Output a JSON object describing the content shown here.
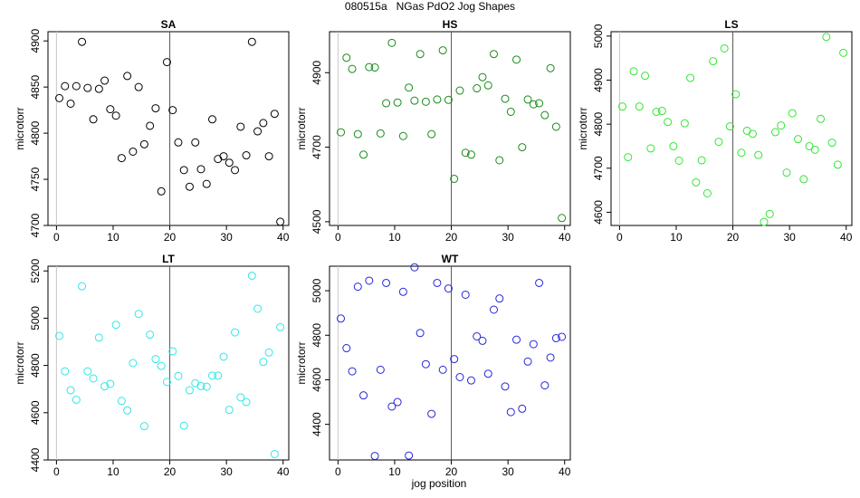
{
  "page": {
    "title": "080515a   NGas PdO2 Jog Shapes",
    "xlabel": "jog position"
  },
  "chart_data": [
    {
      "type": "scatter",
      "title": "SA",
      "ylabel": "microtorr",
      "color": "#000000",
      "xlim": [
        -1.5,
        41
      ],
      "ylim": [
        4700,
        4910
      ],
      "xticks": [
        0,
        10,
        20,
        30,
        40
      ],
      "yticks": [
        4700,
        4750,
        4800,
        4850,
        4900
      ],
      "vline": 20,
      "x": [
        0.5,
        1.5,
        2.5,
        3.5,
        4.5,
        5.5,
        6.5,
        7.5,
        8.5,
        9.5,
        10.5,
        11.5,
        12.5,
        13.5,
        14.5,
        15.5,
        16.5,
        17.5,
        18.5,
        19.5,
        20.5,
        21.5,
        22.5,
        23.5,
        24.5,
        25.5,
        26.5,
        27.5,
        28.5,
        29.5,
        30.5,
        31.5,
        32.5,
        33.5,
        34.5,
        35.5,
        36.5,
        37.5,
        38.5,
        39.5
      ],
      "y": [
        4838,
        4851,
        4832,
        4851,
        4899,
        4849,
        4815,
        4848,
        4857,
        4826,
        4819,
        4773,
        4862,
        4780,
        4850,
        4788,
        4808,
        4827,
        4737,
        4877,
        4825,
        4790,
        4760,
        4742,
        4790,
        4761,
        4745,
        4815,
        4772,
        4775,
        4768,
        4760,
        4807,
        4776,
        4899,
        4802,
        4811,
        4775,
        4821,
        4704
      ]
    },
    {
      "type": "scatter",
      "title": "HS",
      "ylabel": "microtorr",
      "color": "#1a8a1a",
      "xlim": [
        -1.5,
        41
      ],
      "ylim": [
        4490,
        5010
      ],
      "xticks": [
        0,
        10,
        20,
        30,
        40
      ],
      "yticks": [
        4500,
        4700,
        4900
      ],
      "vline": 20,
      "x": [
        0.5,
        1.5,
        2.5,
        3.5,
        4.5,
        5.5,
        6.5,
        7.5,
        8.5,
        9.5,
        10.5,
        11.5,
        12.5,
        13.5,
        14.5,
        15.5,
        16.5,
        17.5,
        18.5,
        19.5,
        20.5,
        21.5,
        22.5,
        23.5,
        24.5,
        25.5,
        26.5,
        27.5,
        28.5,
        29.5,
        30.5,
        31.5,
        32.5,
        33.5,
        34.5,
        35.5,
        36.5,
        37.5,
        38.5,
        39.5
      ],
      "y": [
        4740,
        4940,
        4910,
        4735,
        4680,
        4915,
        4914,
        4737,
        4818,
        4980,
        4820,
        4730,
        4860,
        4825,
        4950,
        4822,
        4735,
        4828,
        4960,
        4827,
        4615,
        4852,
        4685,
        4680,
        4858,
        4888,
        4866,
        4950,
        4665,
        4830,
        4795,
        4935,
        4700,
        4828,
        4815,
        4818,
        4786,
        4912,
        4755,
        4510
      ]
    },
    {
      "type": "scatter",
      "title": "LS",
      "ylabel": "microtorr",
      "color": "#33e633",
      "xlim": [
        -1.5,
        41
      ],
      "ylim": [
        4570,
        5010
      ],
      "xticks": [
        0,
        10,
        20,
        30,
        40
      ],
      "yticks": [
        4600,
        4700,
        4800,
        4900,
        5000
      ],
      "vline": 20,
      "x": [
        0.5,
        1.5,
        2.5,
        3.5,
        4.5,
        5.5,
        6.5,
        7.5,
        8.5,
        9.5,
        10.5,
        11.5,
        12.5,
        13.5,
        14.5,
        15.5,
        16.5,
        17.5,
        18.5,
        19.5,
        20.5,
        21.5,
        22.5,
        23.5,
        24.5,
        25.5,
        26.5,
        27.5,
        28.5,
        29.5,
        30.5,
        31.5,
        32.5,
        33.5,
        34.5,
        35.5,
        36.5,
        37.5,
        38.5,
        39.5
      ],
      "y": [
        4840,
        4725,
        4920,
        4840,
        4910,
        4745,
        4828,
        4830,
        4805,
        4750,
        4717,
        4802,
        4905,
        4668,
        4718,
        4643,
        4943,
        4760,
        4972,
        4795,
        4868,
        4735,
        4785,
        4778,
        4730,
        4578,
        4596,
        4782,
        4797,
        4690,
        4825,
        4766,
        4675,
        4750,
        4742,
        4812,
        4998,
        4758,
        4708,
        4962
      ]
    },
    {
      "type": "scatter",
      "title": "LT",
      "ylabel": "microtorr",
      "color": "#33e6e6",
      "xlim": [
        -1.5,
        41
      ],
      "ylim": [
        4400,
        5220
      ],
      "xticks": [
        0,
        10,
        20,
        30,
        40
      ],
      "yticks": [
        4400,
        4600,
        4800,
        5000,
        5200
      ],
      "vline": 20,
      "x": [
        0.5,
        1.5,
        2.5,
        3.5,
        4.5,
        5.5,
        6.5,
        7.5,
        8.5,
        9.5,
        10.5,
        11.5,
        12.5,
        13.5,
        14.5,
        15.5,
        16.5,
        17.5,
        18.5,
        19.5,
        20.5,
        21.5,
        22.5,
        23.5,
        24.5,
        25.5,
        26.5,
        27.5,
        28.5,
        29.5,
        30.5,
        31.5,
        32.5,
        33.5,
        34.5,
        35.5,
        36.5,
        37.5,
        38.5,
        39.5
      ],
      "y": [
        4925,
        4775,
        4695,
        4655,
        5135,
        4775,
        4745,
        4918,
        4712,
        4722,
        4972,
        4650,
        4610,
        4810,
        5018,
        4543,
        4930,
        4827,
        4798,
        4730,
        4860,
        4755,
        4545,
        4695,
        4725,
        4713,
        4710,
        4757,
        4757,
        4837,
        4612,
        4940,
        4665,
        4645,
        5180,
        5040,
        4815,
        4855,
        4425,
        4962
      ]
    },
    {
      "type": "scatter",
      "title": "WT",
      "ylabel": "microtorr",
      "color": "#2626d9",
      "xlim": [
        -1.5,
        41
      ],
      "ylim": [
        4240,
        5110
      ],
      "xticks": [
        0,
        10,
        20,
        30,
        40
      ],
      "yticks": [
        4400,
        4600,
        4800,
        5000
      ],
      "vline": 20,
      "x": [
        0.5,
        1.5,
        2.5,
        3.5,
        4.5,
        5.5,
        6.5,
        7.5,
        8.5,
        9.5,
        10.5,
        11.5,
        12.5,
        13.5,
        14.5,
        15.5,
        16.5,
        17.5,
        18.5,
        19.5,
        20.5,
        21.5,
        22.5,
        23.5,
        24.5,
        25.5,
        26.5,
        27.5,
        28.5,
        29.5,
        30.5,
        31.5,
        32.5,
        33.5,
        34.5,
        35.5,
        36.5,
        37.5,
        38.5,
        39.5
      ],
      "y": [
        4875,
        4742,
        4638,
        5018,
        4530,
        5045,
        4258,
        4645,
        5035,
        4480,
        4500,
        4995,
        4260,
        5105,
        4810,
        4670,
        4447,
        5035,
        4645,
        5010,
        4693,
        4612,
        4982,
        4597,
        4795,
        4775,
        4627,
        4915,
        4965,
        4570,
        4455,
        4780,
        4470,
        4682,
        4760,
        5035,
        4575,
        4700,
        4787,
        4793
      ]
    }
  ]
}
